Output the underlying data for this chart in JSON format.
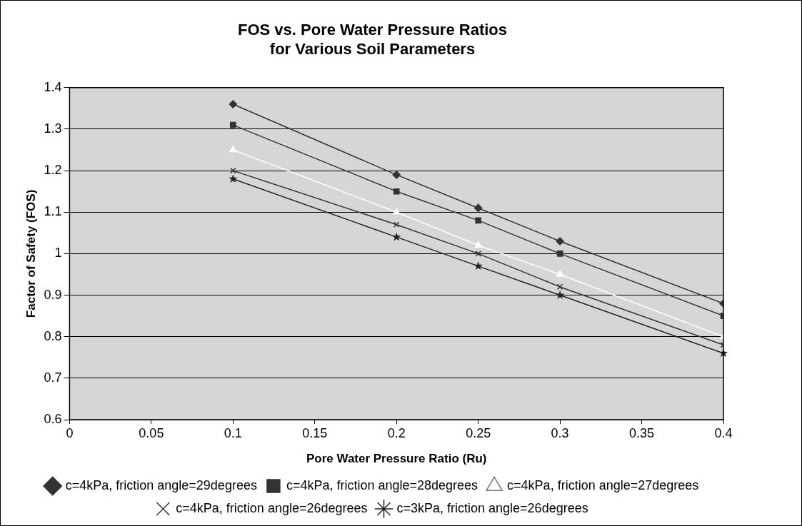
{
  "chart_data": {
    "type": "line",
    "title": "FOS vs. Pore Water Pressure Ratios\nfor Various Soil Parameters",
    "xlabel": "Pore Water Pressure Ratio (Ru)",
    "ylabel": "Factor of Safety (FOS)",
    "x": [
      0.1,
      0.2,
      0.25,
      0.3,
      0.4
    ],
    "series": [
      {
        "name": "c=4kPa, friction angle=29degrees",
        "color": "#333333",
        "marker": "diamond",
        "values": [
          1.36,
          1.19,
          1.11,
          1.03,
          0.88
        ]
      },
      {
        "name": "c=4kPa, friction angle=28degrees",
        "color": "#333333",
        "marker": "square",
        "values": [
          1.31,
          1.15,
          1.08,
          1.0,
          0.85
        ]
      },
      {
        "name": "c=4kPa, friction angle=27degrees",
        "color": "#ffffff",
        "marker": "triangle",
        "values": [
          1.25,
          1.1,
          1.02,
          0.95,
          0.8
        ]
      },
      {
        "name": "c=4kPa, friction angle=26degrees",
        "color": "#333333",
        "marker": "cross",
        "values": [
          1.2,
          1.07,
          1.0,
          0.92,
          0.78
        ]
      },
      {
        "name": "c=3kPa, friction angle=26degrees",
        "color": "#222222",
        "marker": "star",
        "values": [
          1.18,
          1.04,
          0.97,
          0.9,
          0.76
        ]
      }
    ],
    "xlim": [
      0,
      0.4
    ],
    "xticks": [
      0,
      0.05,
      0.1,
      0.15,
      0.2,
      0.25,
      0.3,
      0.35,
      0.4
    ],
    "ylim": [
      0.6,
      1.4
    ],
    "yticks": [
      0.6,
      0.7,
      0.8,
      0.9,
      1,
      1.1,
      1.2,
      1.3,
      1.4
    ],
    "grid": "y",
    "legend": "bottom"
  }
}
